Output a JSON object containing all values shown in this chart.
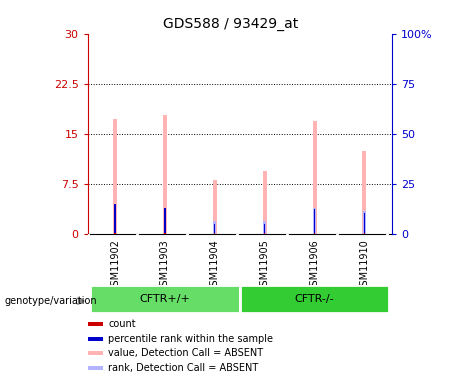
{
  "title": "GDS588 / 93429_at",
  "samples": [
    "GSM11902",
    "GSM11903",
    "GSM11904",
    "GSM11905",
    "GSM11906",
    "GSM11910"
  ],
  "value_absent": [
    17.2,
    17.8,
    8.2,
    9.5,
    17.0,
    12.5
  ],
  "rank_absent": [
    4.5,
    4.0,
    2.0,
    2.0,
    4.0,
    3.5
  ],
  "percentile_rank": [
    4.5,
    4.0,
    1.5,
    1.5,
    3.8,
    3.2
  ],
  "ylim_left": [
    0,
    30
  ],
  "ylim_right": [
    0,
    100
  ],
  "yticks_left": [
    0,
    7.5,
    15,
    22.5,
    30
  ],
  "yticks_right": [
    0,
    25,
    50,
    75,
    100
  ],
  "ytick_labels_left": [
    "0",
    "7.5",
    "15",
    "22.5",
    "30"
  ],
  "ytick_labels_right": [
    "0",
    "25",
    "50",
    "75",
    "100%"
  ],
  "color_value_absent": "#ffb3b3",
  "color_rank_absent": "#b3b3ff",
  "color_count": "#cc0000",
  "color_percentile": "#0000cc",
  "background_color": "#ffffff",
  "left_axis_color": "#cc0000",
  "right_axis_color": "#0000cc",
  "label_bg": "#cccccc",
  "group1_color": "#66dd66",
  "group2_color": "#33cc33",
  "group1_label": "CFTR+/+",
  "group2_label": "CFTR-/-"
}
